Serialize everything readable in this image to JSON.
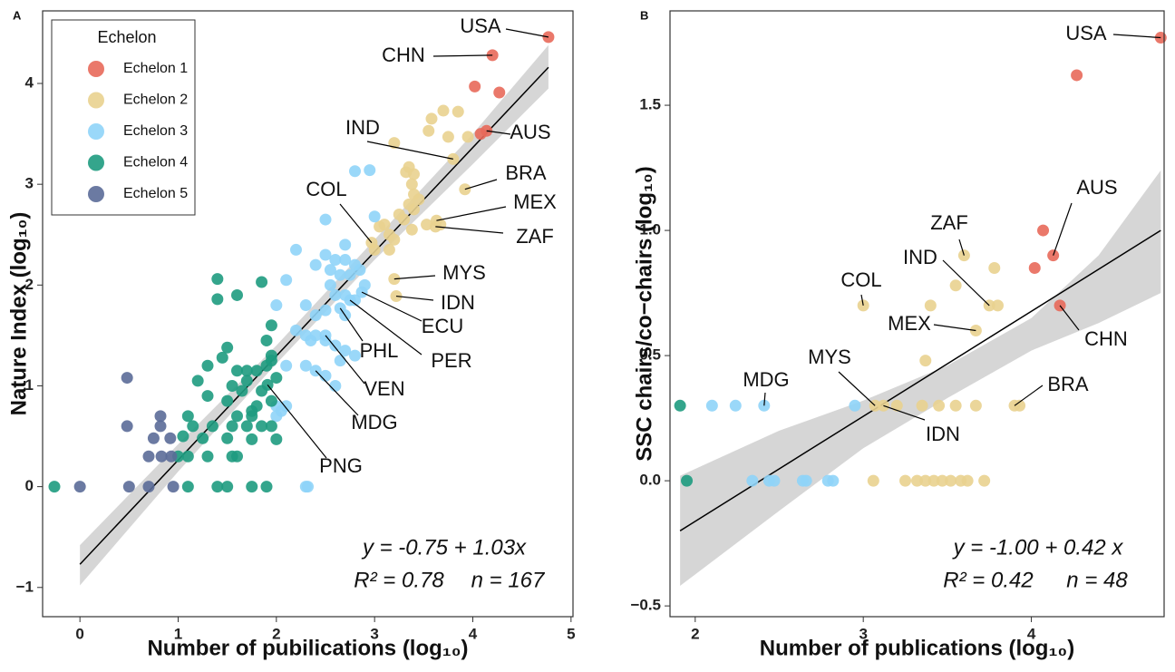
{
  "chart_data": [
    {
      "type": "scatter",
      "panel": "A",
      "xlabel": "Number of pubilications (log₁₀)",
      "ylabel": "Nature Index (log₁₀)",
      "xlim": [
        -0.38,
        5.02
      ],
      "ylim": [
        -1.29,
        4.72
      ],
      "xticks": [
        0,
        1,
        2,
        3,
        4,
        5
      ],
      "yticks": [
        {
          "value": -1,
          "label": "−1"
        },
        0,
        1,
        2,
        3,
        4
      ],
      "legend": "top-left",
      "legend_title": "Echelon",
      "series": [
        {
          "name": "Echelon 1",
          "color": "#e8695a",
          "x": [
            4.77,
            4.2,
            4.02,
            4.27,
            4.14,
            4.08
          ],
          "values": [
            4.46,
            4.28,
            3.97,
            3.91,
            3.53,
            3.5
          ],
          "labels": [
            "USA",
            "CHN",
            null,
            null,
            "AUS",
            null
          ]
        },
        {
          "name": "Echelon 2",
          "color": "#e9d18f",
          "x": [
            3.8,
            3.92,
            3.63,
            3.62,
            2.97,
            3.2,
            3.22,
            3.7,
            3.85,
            3.58,
            3.55,
            3.75,
            3.95,
            3.2,
            3.32,
            3.35,
            3.4,
            3.38,
            3.4,
            3.45,
            3.35,
            3.4,
            3.25,
            3.3,
            3.05,
            3.1,
            3.15,
            3.2,
            3.0,
            3.15,
            3.38,
            3.53,
            3.67
          ],
          "values": [
            3.25,
            2.95,
            2.64,
            2.58,
            2.42,
            2.06,
            1.89,
            3.73,
            3.72,
            3.65,
            3.53,
            3.47,
            3.47,
            3.41,
            3.12,
            3.17,
            3.1,
            3.0,
            2.9,
            2.85,
            2.8,
            2.75,
            2.7,
            2.65,
            2.58,
            2.6,
            2.5,
            2.45,
            2.35,
            2.35,
            2.55,
            2.6,
            2.6
          ],
          "labels": [
            "IND",
            "BRA",
            "MEX",
            "ZAF",
            "COL",
            "MYS",
            "IDN"
          ]
        },
        {
          "name": "Echelon 3",
          "color": "#8fd4f8",
          "x": [
            2.87,
            2.75,
            2.65,
            2.5,
            2.4,
            2.8,
            2.95,
            3.0,
            2.5,
            2.7,
            2.2,
            2.5,
            2.6,
            2.7,
            2.8,
            2.4,
            2.55,
            2.65,
            2.75,
            2.85,
            2.9,
            2.1,
            2.55,
            2.6,
            2.7,
            2.8,
            2.3,
            2.0,
            2.5,
            2.4,
            2.7,
            2.2,
            2.3,
            2.35,
            2.4,
            2.5,
            2.6,
            2.7,
            2.8,
            2.65,
            2.1,
            2.3,
            2.5,
            2.6,
            2.0,
            2.05,
            2.1,
            2.0,
            2.3,
            2.32
          ],
          "values": [
            1.93,
            1.85,
            1.77,
            1.5,
            1.15,
            3.13,
            3.14,
            2.68,
            2.65,
            2.4,
            2.35,
            2.3,
            2.25,
            2.25,
            2.2,
            2.2,
            2.15,
            2.1,
            2.1,
            2.15,
            2.0,
            2.05,
            2.0,
            1.9,
            1.9,
            1.85,
            1.8,
            1.8,
            1.75,
            1.7,
            1.7,
            1.55,
            1.5,
            1.45,
            1.5,
            1.45,
            1.4,
            1.35,
            1.3,
            1.25,
            1.2,
            1.2,
            1.1,
            1.0,
            0.8,
            0.75,
            0.8,
            0.7,
            0,
            0
          ],
          "labels": [
            "ECU",
            "PER",
            "PHL",
            "VEN",
            "MDG"
          ]
        },
        {
          "name": "Echelon 4",
          "color": "#1e9b80",
          "x": [
            1.91,
            1.4,
            1.4,
            1.6,
            1.85,
            1.95,
            1.9,
            1.95,
            1.5,
            1.45,
            1.3,
            1.6,
            1.7,
            1.8,
            1.9,
            1.95,
            1.7,
            1.2,
            1.55,
            1.65,
            1.85,
            2.0,
            1.3,
            1.5,
            1.75,
            1.8,
            1.95,
            1.6,
            1.75,
            1.1,
            1.35,
            1.55,
            1.7,
            1.85,
            1.95,
            1.15,
            1.05,
            1.25,
            1.5,
            1.75,
            2.0,
            1.1,
            1.3,
            1.6,
            1.55,
            1.0,
            1.1,
            1.4,
            1.5,
            1.9,
            1.75,
            -0.26
          ],
          "values": [
            1.01,
            2.06,
            1.86,
            1.9,
            2.03,
            1.6,
            1.45,
            1.3,
            1.38,
            1.28,
            1.2,
            1.15,
            1.15,
            1.15,
            1.2,
            1.25,
            1.05,
            1.05,
            1.0,
            0.95,
            0.95,
            1.08,
            0.9,
            0.85,
            0.75,
            0.8,
            0.85,
            0.7,
            0.7,
            0.7,
            0.6,
            0.6,
            0.6,
            0.6,
            0.6,
            0.6,
            0.5,
            0.48,
            0.48,
            0.47,
            0.47,
            0.3,
            0.3,
            0.3,
            0.3,
            0.3,
            0,
            0,
            0,
            0,
            0,
            0
          ],
          "labels": [
            "PNG"
          ]
        },
        {
          "name": "Echelon 5",
          "color": "#5b6b98",
          "x": [
            0,
            0.48,
            0.48,
            0.82,
            0.82,
            0.5,
            0.7,
            0.93,
            0.92,
            0.75,
            0.95,
            0.7,
            0.83
          ],
          "values": [
            0,
            1.08,
            0.6,
            0.7,
            0.6,
            0,
            0.3,
            0.3,
            0.48,
            0.48,
            0,
            0,
            0.3
          ]
        }
      ],
      "fit": {
        "x": [
          0,
          1,
          2,
          3,
          4,
          4.77
        ],
        "lower": [
          -0.98,
          0.15,
          1.22,
          2.25,
          3.2,
          3.95
        ],
        "upper": [
          -0.58,
          0.42,
          1.4,
          2.45,
          3.5,
          4.38
        ],
        "line_x": [
          0,
          4.77
        ],
        "line_y": [
          -0.77,
          4.16
        ]
      },
      "annotations": [
        "y = -0.75 + 1.03x",
        "R² = 0.78",
        "n = 167"
      ]
    },
    {
      "type": "scatter",
      "panel": "B",
      "xlabel": "Number of publications (log₁₀)",
      "ylabel": "SSC chairs/co−chairs (log₁₀)",
      "xlim": [
        1.85,
        4.79
      ],
      "ylim": [
        -0.543,
        1.877
      ],
      "xticks": [
        2,
        3,
        4
      ],
      "yticks": [
        {
          "value": -0.5,
          "label": "−0.5"
        },
        {
          "value": 0,
          "label": "0.0"
        },
        0.5,
        {
          "value": 1,
          "label": "1.0"
        },
        1.5
      ],
      "series": [
        {
          "color": "#e8695a",
          "x": [
            4.77,
            4.27,
            4.07,
            4.13,
            4.02,
            4.17
          ],
          "values": [
            1.77,
            1.62,
            1.0,
            0.9,
            0.85,
            0.7
          ],
          "labels": [
            "USA",
            null,
            null,
            "AUS",
            null,
            "CHN"
          ]
        },
        {
          "color": "#e9d18f",
          "x": [
            3.6,
            3.0,
            3.75,
            3.67,
            3.9,
            3.07,
            3.12,
            3.8,
            3.78,
            3.55,
            3.4,
            3.37,
            3.93,
            3.2,
            3.35,
            3.45,
            3.55,
            3.67,
            3.06,
            3.25,
            3.32,
            3.37,
            3.42,
            3.47,
            3.52,
            3.58,
            3.62,
            3.72
          ],
          "values": [
            0.9,
            0.7,
            0.7,
            0.6,
            0.3,
            0.3,
            0.3,
            0.7,
            0.85,
            0.78,
            0.7,
            0.48,
            0.3,
            0.3,
            0.3,
            0.3,
            0.3,
            0.3,
            0,
            0,
            0,
            0,
            0,
            0,
            0,
            0,
            0,
            0
          ],
          "labels": [
            "ZAF",
            "COL",
            "IND",
            "MEX",
            "BRA",
            "MYS",
            "IDN"
          ]
        },
        {
          "color": "#8fd4f8",
          "x": [
            2.41,
            2.1,
            2.24,
            2.95,
            2.34,
            2.44,
            2.47,
            2.64,
            2.66,
            2.79,
            2.82
          ],
          "values": [
            0.3,
            0.3,
            0.3,
            0.3,
            0,
            0,
            0,
            0,
            0,
            0,
            0
          ],
          "labels": [
            "MDG"
          ]
        },
        {
          "color": "#1e9b80",
          "x": [
            1.91,
            1.95
          ],
          "values": [
            0.3,
            0
          ]
        }
      ],
      "fit": {
        "x": [
          1.91,
          2.5,
          3,
          3.5,
          4,
          4.4,
          4.77
        ],
        "lower": [
          -0.42,
          -0.12,
          0.13,
          0.33,
          0.52,
          0.63,
          0.75
        ],
        "upper": [
          0.02,
          0.2,
          0.32,
          0.46,
          0.65,
          0.9,
          1.24
        ],
        "line_x": [
          1.91,
          4.77
        ],
        "line_y": [
          -0.2,
          1.0
        ]
      },
      "annotations": [
        "y = -1.00 + 0.42 x",
        "R² = 0.42",
        "n = 48"
      ]
    }
  ]
}
